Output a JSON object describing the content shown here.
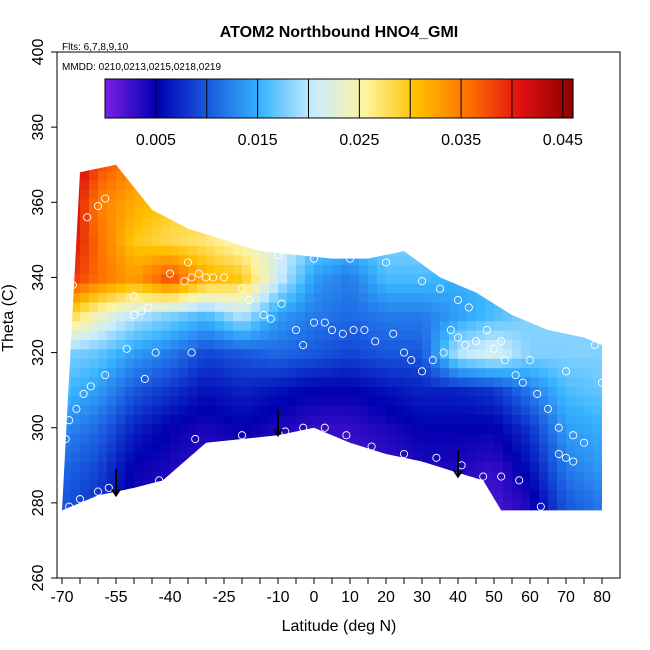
{
  "chart_data": {
    "type": "heatmap",
    "title": "ATOM2 Northbound HNO4_GMI",
    "info_lines": [
      "Flts: 6,7,8,9,10",
      "MMDD: 0210,0213,0215,0218,0219"
    ],
    "xlabel": "Latitude (deg N)",
    "ylabel": "Theta (C)",
    "xlim": [
      -70,
      80
    ],
    "ylim": [
      260,
      400
    ],
    "x_ticks": [
      -70,
      -55,
      -40,
      -25,
      -10,
      0,
      10,
      20,
      30,
      40,
      50,
      60,
      70,
      80
    ],
    "x_tick_labels": [
      "-70",
      "-55",
      "-40",
      "-25",
      "-10",
      "0",
      "10",
      "20",
      "30",
      "40",
      "50",
      "60",
      "70",
      "80"
    ],
    "y_ticks": [
      260,
      280,
      300,
      320,
      340,
      360,
      380,
      400
    ],
    "y_tick_labels": [
      "260",
      "280",
      "300",
      "320",
      "340",
      "360",
      "380",
      "400"
    ],
    "colorbar": {
      "range": [
        0.0,
        0.046
      ],
      "tick_values": [
        0.005,
        0.015,
        0.025,
        0.035,
        0.045
      ],
      "tick_labels": [
        "0.005",
        "0.015",
        "0.025",
        "0.035",
        "0.045"
      ],
      "boundaries": [
        0.0,
        0.005,
        0.01,
        0.015,
        0.02,
        0.025,
        0.03,
        0.035,
        0.04,
        0.045
      ],
      "colors": [
        "#7a1fe6",
        "#0000b0",
        "#1a5ce0",
        "#38b4ff",
        "#c8ecff",
        "#fff4a0",
        "#ffc000",
        "#ff7000",
        "#e01010",
        "#8a0000"
      ]
    },
    "upper_boundary": [
      [
        -65,
        368
      ],
      [
        -55,
        370
      ],
      [
        -45,
        358
      ],
      [
        -35,
        353
      ],
      [
        -25,
        350
      ],
      [
        -15,
        347
      ],
      [
        -5,
        346
      ],
      [
        5,
        345
      ],
      [
        15,
        345
      ],
      [
        25,
        347
      ],
      [
        35,
        340
      ],
      [
        45,
        336
      ],
      [
        55,
        330
      ],
      [
        65,
        326
      ],
      [
        75,
        324
      ],
      [
        80,
        322
      ]
    ],
    "lower_boundary": [
      [
        -70,
        278
      ],
      [
        -60,
        282
      ],
      [
        -50,
        284
      ],
      [
        -42,
        286
      ],
      [
        -30,
        296
      ],
      [
        -20,
        297
      ],
      [
        -10,
        298
      ],
      [
        0,
        300
      ],
      [
        10,
        296
      ],
      [
        20,
        293
      ],
      [
        30,
        291
      ],
      [
        40,
        288
      ],
      [
        47,
        286
      ],
      [
        52,
        278
      ],
      [
        80,
        278
      ]
    ],
    "field": {
      "lat": [
        -70,
        -60,
        -50,
        -40,
        -30,
        -20,
        -10,
        0,
        10,
        20,
        30,
        40,
        50,
        60,
        70,
        80
      ],
      "theta": [
        280,
        290,
        300,
        310,
        320,
        330,
        340,
        350,
        360,
        370
      ],
      "values": [
        [
          0.01,
          0.008,
          0.004,
          0.003,
          0.003,
          0.003,
          0.003,
          0.002,
          0.002,
          0.003,
          0.003,
          0.003,
          0.002,
          0.004,
          0.01,
          0.012
        ],
        [
          0.011,
          0.009,
          0.005,
          0.004,
          0.003,
          0.004,
          0.003,
          0.002,
          0.002,
          0.003,
          0.004,
          0.004,
          0.003,
          0.006,
          0.012,
          0.014
        ],
        [
          0.013,
          0.011,
          0.007,
          0.005,
          0.004,
          0.005,
          0.004,
          0.003,
          0.003,
          0.004,
          0.005,
          0.005,
          0.005,
          0.008,
          0.014,
          0.015
        ],
        [
          0.016,
          0.014,
          0.01,
          0.008,
          0.006,
          0.007,
          0.006,
          0.005,
          0.005,
          0.006,
          0.007,
          0.007,
          0.008,
          0.012,
          0.016,
          0.017
        ],
        [
          0.018,
          0.017,
          0.014,
          0.012,
          0.009,
          0.01,
          0.011,
          0.01,
          0.009,
          0.01,
          0.01,
          0.02,
          0.022,
          0.018,
          0.018,
          0.018
        ],
        [
          0.03,
          0.024,
          0.02,
          0.018,
          0.016,
          0.02,
          0.014,
          0.012,
          0.011,
          0.012,
          0.012,
          0.014,
          0.016,
          0.018,
          0.018,
          0.018
        ],
        [
          0.04,
          0.036,
          0.033,
          0.038,
          0.032,
          0.03,
          0.021,
          0.014,
          0.012,
          0.016,
          0.016,
          0.015,
          0.016,
          0.018,
          0.018,
          0.018
        ],
        [
          0.043,
          0.036,
          0.03,
          0.028,
          0.027,
          0.024,
          0.022,
          0.018,
          0.016,
          0.018,
          0.018,
          0.017,
          0.017,
          0.018,
          0.018,
          0.018
        ],
        [
          0.044,
          0.035,
          0.032,
          0.03,
          0.029,
          0.027,
          0.025,
          0.022,
          0.02,
          0.02,
          0.019,
          0.018,
          0.018,
          0.018,
          0.018,
          0.018
        ],
        [
          0.046,
          0.038,
          0.034,
          0.031,
          0.03,
          0.028,
          0.026,
          0.024,
          0.022,
          0.021,
          0.02,
          0.019,
          0.019,
          0.019,
          0.019,
          0.019
        ]
      ]
    },
    "observation_points": [
      [
        -68,
        279
      ],
      [
        -65,
        281
      ],
      [
        -60,
        283
      ],
      [
        -57,
        284
      ],
      [
        -43,
        286
      ],
      [
        -33,
        297
      ],
      [
        -20,
        298
      ],
      [
        -8,
        299
      ],
      [
        -3,
        300
      ],
      [
        3,
        300
      ],
      [
        9,
        298
      ],
      [
        16,
        295
      ],
      [
        25,
        293
      ],
      [
        34,
        292
      ],
      [
        41,
        290
      ],
      [
        47,
        287
      ],
      [
        52,
        287
      ],
      [
        57,
        286
      ],
      [
        63,
        279
      ],
      [
        68,
        293
      ],
      [
        70,
        292
      ],
      [
        72,
        291
      ],
      [
        -69,
        297
      ],
      [
        -68,
        302
      ],
      [
        -66,
        305
      ],
      [
        -64,
        309
      ],
      [
        -62,
        311
      ],
      [
        -58,
        314
      ],
      [
        -47,
        313
      ],
      [
        -44,
        320
      ],
      [
        -34,
        320
      ],
      [
        -52,
        321
      ],
      [
        -50,
        330
      ],
      [
        -48,
        331
      ],
      [
        -46,
        332
      ],
      [
        -36,
        339
      ],
      [
        -34,
        340
      ],
      [
        -32,
        341
      ],
      [
        -30,
        340
      ],
      [
        -28,
        340
      ],
      [
        -25,
        340
      ],
      [
        -20,
        337
      ],
      [
        -18,
        334
      ],
      [
        -14,
        330
      ],
      [
        -12,
        329
      ],
      [
        -9,
        333
      ],
      [
        -5,
        326
      ],
      [
        -3,
        322
      ],
      [
        0,
        328
      ],
      [
        3,
        328
      ],
      [
        5,
        326
      ],
      [
        8,
        325
      ],
      [
        11,
        326
      ],
      [
        14,
        326
      ],
      [
        17,
        323
      ],
      [
        22,
        325
      ],
      [
        25,
        320
      ],
      [
        27,
        318
      ],
      [
        30,
        315
      ],
      [
        33,
        318
      ],
      [
        36,
        320
      ],
      [
        38,
        326
      ],
      [
        40,
        324
      ],
      [
        42,
        322
      ],
      [
        45,
        323
      ],
      [
        50,
        321
      ],
      [
        53,
        318
      ],
      [
        56,
        314
      ],
      [
        58,
        312
      ],
      [
        62,
        309
      ],
      [
        65,
        305
      ],
      [
        68,
        300
      ],
      [
        72,
        298
      ],
      [
        75,
        296
      ],
      [
        -67,
        338
      ],
      [
        -63,
        356
      ],
      [
        -60,
        359
      ],
      [
        -58,
        361
      ],
      [
        -50,
        335
      ],
      [
        -40,
        341
      ],
      [
        -35,
        344
      ],
      [
        -10,
        346
      ],
      [
        0,
        345
      ],
      [
        10,
        345
      ],
      [
        20,
        344
      ],
      [
        30,
        339
      ],
      [
        35,
        337
      ],
      [
        40,
        334
      ],
      [
        43,
        332
      ],
      [
        48,
        326
      ],
      [
        52,
        323
      ],
      [
        60,
        318
      ],
      [
        70,
        315
      ],
      [
        80,
        312
      ],
      [
        78,
        322
      ]
    ],
    "arrows": [
      {
        "lat": -55,
        "top": 289,
        "bottom": 282
      },
      {
        "lat": -10,
        "top": 305,
        "bottom": 298
      },
      {
        "lat": 40,
        "top": 294,
        "bottom": 287
      }
    ]
  }
}
